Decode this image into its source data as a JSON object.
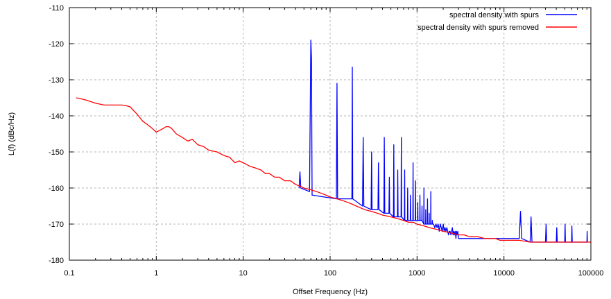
{
  "chart_data": {
    "type": "line",
    "title": "",
    "xlabel": "Offset Frequency (Hz)",
    "ylabel": "L(f) (dBc/Hz)",
    "x_scale": "log",
    "xlim": [
      0.1,
      100000
    ],
    "ylim": [
      -180,
      -110
    ],
    "grid": true,
    "legend_position": "top-right",
    "x_ticks": [
      {
        "value": 0.1,
        "label": "0.1"
      },
      {
        "value": 1,
        "label": "1"
      },
      {
        "value": 10,
        "label": "10"
      },
      {
        "value": 100,
        "label": "100"
      },
      {
        "value": 1000,
        "label": "1000"
      },
      {
        "value": 10000,
        "label": "10000"
      },
      {
        "value": 100000,
        "label": "100000"
      }
    ],
    "y_ticks": [
      {
        "value": -110,
        "label": "-110"
      },
      {
        "value": -120,
        "label": "-120"
      },
      {
        "value": -130,
        "label": "-130"
      },
      {
        "value": -140,
        "label": "-140"
      },
      {
        "value": -150,
        "label": "-150"
      },
      {
        "value": -160,
        "label": "-160"
      },
      {
        "value": -170,
        "label": "-170"
      },
      {
        "value": -180,
        "label": "-180"
      }
    ],
    "series": [
      {
        "name": "spectral density with spurs",
        "color": "#0000ff",
        "x": [
          44,
          45,
          46,
          58,
          60,
          61,
          62,
          63,
          118,
          120,
          122,
          178,
          180,
          182,
          236,
          240,
          244,
          296,
          300,
          304,
          355,
          360,
          365,
          415,
          420,
          425,
          475,
          480,
          485,
          535,
          540,
          545,
          595,
          600,
          605,
          655,
          660,
          665,
          715,
          720,
          725,
          775,
          780,
          785,
          835,
          840,
          845,
          895,
          900,
          905,
          955,
          960,
          965,
          1015,
          1020,
          1025,
          1075,
          1080,
          1085,
          1135,
          1140,
          1145,
          1195,
          1200,
          1205,
          1255,
          1260,
          1265,
          1315,
          1320,
          1325,
          1375,
          1380,
          1385,
          1435,
          1440,
          1445,
          1495,
          1500,
          1505,
          1550,
          1600,
          1650,
          1700,
          1750,
          1800,
          1850,
          1900,
          1950,
          2000,
          2050,
          2100,
          2150,
          2200,
          2250,
          2300,
          2350,
          2400,
          2450,
          2500,
          2550,
          2600,
          2650,
          2700,
          2750,
          2800,
          2850,
          2900,
          2950,
          3000,
          15000,
          15500,
          16000,
          20000,
          20500,
          21000,
          30000,
          30500,
          31000,
          40000,
          40500,
          41000,
          50000,
          50500,
          51000,
          60000,
          60500,
          61000,
          90000,
          90500,
          91000
        ],
        "y": [
          -160,
          -155.5,
          -160,
          -161,
          -119,
          -124,
          -162,
          -162,
          -163,
          -131,
          -163,
          -163,
          -126.5,
          -163,
          -165,
          -146,
          -165,
          -166,
          -150,
          -166,
          -166,
          -153,
          -166,
          -167,
          -146,
          -167,
          -167,
          -157,
          -167,
          -168,
          -148,
          -168,
          -168,
          -155,
          -168,
          -168,
          -146,
          -168,
          -169,
          -155,
          -169,
          -169,
          -160,
          -169,
          -169,
          -162,
          -169,
          -169,
          -153,
          -169,
          -169,
          -158,
          -169,
          -169,
          -164,
          -169,
          -169,
          -162,
          -169,
          -169,
          -165,
          -169,
          -170,
          -160,
          -170,
          -170,
          -166,
          -170,
          -170,
          -163,
          -170,
          -170,
          -167,
          -170,
          -170,
          -161,
          -170,
          -170,
          -169,
          -170,
          -170,
          -171,
          -170,
          -171,
          -170,
          -172,
          -170,
          -171,
          -172,
          -170,
          -172,
          -171,
          -172,
          -171,
          -172,
          -173,
          -172,
          -172,
          -173,
          -172,
          -171,
          -173,
          -172,
          -173,
          -172,
          -174,
          -172,
          -173,
          -172,
          -174,
          -174,
          -166.5,
          -174,
          -175,
          -168,
          -175,
          -175,
          -170,
          -175,
          -175,
          -171,
          -175,
          -175,
          -170,
          -175,
          -175,
          -170.5,
          -175,
          -175,
          -172,
          -175
        ]
      },
      {
        "name": "spectral density with spurs removed",
        "color": "#ff0000",
        "x": [
          0.12,
          0.15,
          0.2,
          0.25,
          0.3,
          0.35,
          0.4,
          0.45,
          0.5,
          0.6,
          0.7,
          0.8,
          0.9,
          1.0,
          1.1,
          1.2,
          1.3,
          1.4,
          1.5,
          1.7,
          2.0,
          2.3,
          2.6,
          3.0,
          3.5,
          4.0,
          5.0,
          6.0,
          7.0,
          8.0,
          9.0,
          10,
          12,
          14,
          16,
          18,
          20,
          23,
          26,
          30,
          35,
          40,
          45,
          50,
          60,
          70,
          80,
          90,
          100,
          120,
          140,
          160,
          180,
          200,
          250,
          300,
          350,
          400,
          500,
          600,
          700,
          800,
          900,
          1000,
          1200,
          1400,
          1700,
          2000,
          2500,
          3000,
          3500,
          4000,
          5000,
          6000,
          7000,
          8000,
          9000,
          10000,
          12000,
          15000,
          20000,
          25000,
          30000,
          40000,
          50000,
          60000,
          70000,
          80000,
          90000,
          100000
        ],
        "y": [
          -135,
          -135.5,
          -136.5,
          -137,
          -137,
          -137,
          -137,
          -137.2,
          -137.5,
          -139.5,
          -141.5,
          -142.5,
          -143.5,
          -144.5,
          -144,
          -143.5,
          -143,
          -143,
          -143.5,
          -145,
          -146,
          -147,
          -146.5,
          -148,
          -148.5,
          -149.5,
          -150,
          -151,
          -151.5,
          -153,
          -152.5,
          -153,
          -154,
          -154.5,
          -155,
          -156,
          -156,
          -157,
          -157,
          -158,
          -158,
          -159,
          -159.5,
          -160,
          -160.5,
          -161,
          -161.5,
          -162,
          -162.5,
          -163,
          -163.5,
          -164,
          -164.5,
          -165,
          -166,
          -166.5,
          -167,
          -167.5,
          -168,
          -168.5,
          -169,
          -169.5,
          -169.5,
          -170,
          -170.5,
          -171,
          -171.5,
          -172,
          -172.5,
          -173,
          -173,
          -173.5,
          -173.5,
          -174,
          -174,
          -174,
          -174.5,
          -174.5,
          -174.5,
          -174.5,
          -175,
          -175,
          -175,
          -175,
          -175,
          -175,
          -175,
          -175,
          -175,
          -175
        ]
      }
    ]
  }
}
